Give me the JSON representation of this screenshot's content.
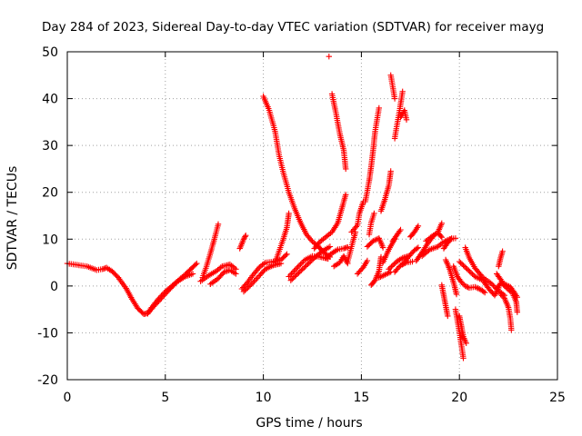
{
  "chart_data": {
    "type": "scatter",
    "title": "Day 284 of 2023, Sidereal Day-to-day VTEC variation (SDTVAR) for receiver mayg",
    "xlabel": "GPS time / hours",
    "ylabel": "SDTVAR / TECUs",
    "xlim": [
      0,
      25
    ],
    "ylim": [
      -20,
      50
    ],
    "xticks": [
      0,
      5,
      10,
      15,
      20,
      25
    ],
    "yticks": [
      -20,
      -10,
      0,
      10,
      20,
      30,
      40,
      50
    ],
    "xtick_labels": [
      "0",
      "5",
      "10",
      "15",
      "20",
      "25"
    ],
    "ytick_labels": [
      "-20",
      "-10",
      "0",
      "10",
      "20",
      "30",
      "40",
      "50"
    ],
    "grid": true,
    "marker": "+",
    "color": "#ff0000",
    "series": [
      {
        "name": "s01",
        "points": [
          [
            0,
            4.8
          ],
          [
            0.5,
            4.5
          ],
          [
            1.0,
            4.2
          ],
          [
            1.5,
            3.4
          ],
          [
            1.8,
            3.6
          ],
          [
            2.0,
            3.9
          ],
          [
            2.3,
            3.1
          ],
          [
            2.6,
            1.8
          ],
          [
            3.0,
            -0.5
          ],
          [
            3.3,
            -2.8
          ],
          [
            3.6,
            -4.8
          ],
          [
            3.9,
            -6.0
          ],
          [
            4.1,
            -5.8
          ],
          [
            4.3,
            -4.6
          ],
          [
            4.6,
            -3.0
          ],
          [
            5.0,
            -1.2
          ],
          [
            5.5,
            0.6
          ],
          [
            6.0,
            2.4
          ],
          [
            6.3,
            3.6
          ],
          [
            6.6,
            4.8
          ]
        ]
      },
      {
        "name": "s02",
        "points": [
          [
            4.1,
            -5.9
          ],
          [
            4.4,
            -4.4
          ],
          [
            4.8,
            -2.6
          ],
          [
            5.2,
            -0.8
          ],
          [
            5.6,
            0.9
          ],
          [
            6.0,
            2.0
          ],
          [
            6.4,
            2.6
          ]
        ]
      },
      {
        "name": "s03",
        "points": [
          [
            6.9,
            1.8
          ],
          [
            7.1,
            4.2
          ],
          [
            7.3,
            7.0
          ],
          [
            7.5,
            10.0
          ],
          [
            7.7,
            13.2
          ]
        ]
      },
      {
        "name": "s04",
        "points": [
          [
            6.8,
            1.0
          ],
          [
            7.2,
            2.2
          ],
          [
            7.6,
            3.2
          ],
          [
            7.9,
            4.2
          ],
          [
            8.3,
            4.6
          ],
          [
            8.6,
            3.6
          ]
        ]
      },
      {
        "name": "s05",
        "points": [
          [
            7.3,
            0.4
          ],
          [
            7.7,
            1.6
          ],
          [
            8.0,
            3.0
          ],
          [
            8.3,
            3.4
          ],
          [
            8.6,
            2.6
          ]
        ]
      },
      {
        "name": "s06",
        "points": [
          [
            8.8,
            8.0
          ],
          [
            8.9,
            9.0
          ],
          [
            9.0,
            10.0
          ],
          [
            9.1,
            10.8
          ]
        ]
      },
      {
        "name": "s07",
        "points": [
          [
            8.9,
            -0.6
          ],
          [
            9.2,
            0.8
          ],
          [
            9.5,
            2.5
          ],
          [
            9.8,
            4.0
          ],
          [
            10.1,
            5.0
          ],
          [
            10.5,
            5.2
          ],
          [
            10.9,
            5.6
          ],
          [
            11.2,
            6.8
          ]
        ]
      },
      {
        "name": "s08",
        "points": [
          [
            9.0,
            -1.2
          ],
          [
            9.4,
            0.4
          ],
          [
            9.8,
            2.2
          ],
          [
            10.1,
            3.6
          ],
          [
            10.5,
            4.4
          ],
          [
            10.9,
            4.8
          ]
        ]
      },
      {
        "name": "s09",
        "points": [
          [
            10.6,
            5.0
          ],
          [
            10.8,
            7.4
          ],
          [
            11.0,
            9.8
          ],
          [
            11.2,
            12.5
          ],
          [
            11.3,
            15.5
          ]
        ]
      },
      {
        "name": "s10",
        "points": [
          [
            10.0,
            40.5
          ],
          [
            10.3,
            37.5
          ],
          [
            10.6,
            33.0
          ],
          [
            10.8,
            28.0
          ],
          [
            11.0,
            24.5
          ],
          [
            11.3,
            20.0
          ],
          [
            11.6,
            16.5
          ],
          [
            11.9,
            13.5
          ],
          [
            12.2,
            11.0
          ],
          [
            12.5,
            9.5
          ],
          [
            12.8,
            8.5
          ],
          [
            13.0,
            7.5
          ],
          [
            13.2,
            6.8
          ],
          [
            13.4,
            6.2
          ]
        ]
      },
      {
        "name": "s11",
        "points": [
          [
            11.3,
            2.0
          ],
          [
            11.7,
            3.8
          ],
          [
            12.1,
            5.5
          ],
          [
            12.5,
            6.4
          ],
          [
            12.9,
            6.2
          ],
          [
            13.3,
            5.8
          ]
        ]
      },
      {
        "name": "s12",
        "points": [
          [
            11.4,
            1.2
          ],
          [
            11.8,
            2.8
          ],
          [
            12.2,
            4.4
          ],
          [
            12.6,
            6.0
          ],
          [
            13.0,
            7.4
          ],
          [
            13.4,
            8.4
          ]
        ]
      },
      {
        "name": "s13",
        "points": [
          [
            12.6,
            8.0
          ],
          [
            12.9,
            9.5
          ],
          [
            13.2,
            10.5
          ],
          [
            13.5,
            11.5
          ],
          [
            13.8,
            13.5
          ],
          [
            14.0,
            16.5
          ],
          [
            14.2,
            19.5
          ]
        ]
      },
      {
        "name": "s14",
        "points": [
          [
            13.35,
            49.0
          ]
        ]
      },
      {
        "name": "s15",
        "points": [
          [
            13.5,
            41.0
          ],
          [
            13.7,
            37.0
          ],
          [
            13.9,
            32.5
          ],
          [
            14.1,
            29.0
          ],
          [
            14.2,
            25.0
          ]
        ]
      },
      {
        "name": "s16",
        "points": [
          [
            13.2,
            6.0
          ],
          [
            13.5,
            7.0
          ],
          [
            13.8,
            7.8
          ],
          [
            14.1,
            8.0
          ],
          [
            14.3,
            8.3
          ]
        ]
      },
      {
        "name": "s17",
        "points": [
          [
            13.6,
            4.2
          ],
          [
            13.9,
            5.0
          ],
          [
            14.1,
            6.4
          ],
          [
            14.3,
            4.8
          ]
        ]
      },
      {
        "name": "s18",
        "points": [
          [
            14.3,
            5.2
          ],
          [
            14.5,
            8.4
          ],
          [
            14.6,
            10.0
          ],
          [
            14.7,
            11.5
          ]
        ]
      },
      {
        "name": "s19",
        "points": [
          [
            14.5,
            11.5
          ],
          [
            14.8,
            13.0
          ],
          [
            14.9,
            15.5
          ],
          [
            15.1,
            18.0
          ]
        ]
      },
      {
        "name": "s20",
        "points": [
          [
            14.8,
            2.6
          ],
          [
            15.1,
            4.0
          ],
          [
            15.3,
            5.4
          ]
        ]
      },
      {
        "name": "s21",
        "points": [
          [
            15.2,
            18.0
          ],
          [
            15.4,
            22.5
          ],
          [
            15.5,
            25.5
          ],
          [
            15.6,
            29.0
          ],
          [
            15.7,
            33.0
          ],
          [
            15.9,
            38.0
          ]
        ]
      },
      {
        "name": "s22",
        "points": [
          [
            15.4,
            11.0
          ],
          [
            15.5,
            13.5
          ],
          [
            15.65,
            15.5
          ]
        ]
      },
      {
        "name": "s23",
        "points": [
          [
            15.3,
            8.4
          ],
          [
            15.6,
            9.6
          ],
          [
            15.9,
            10.2
          ],
          [
            16.1,
            8.2
          ]
        ]
      },
      {
        "name": "s24",
        "points": [
          [
            15.5,
            0.2
          ],
          [
            15.7,
            1.2
          ],
          [
            15.9,
            3.2
          ],
          [
            16.0,
            6.2
          ]
        ]
      },
      {
        "name": "s25",
        "points": [
          [
            15.9,
            1.8
          ],
          [
            16.2,
            2.4
          ],
          [
            16.5,
            3.0
          ]
        ]
      },
      {
        "name": "s26",
        "points": [
          [
            16.0,
            16.0
          ],
          [
            16.2,
            18.5
          ],
          [
            16.4,
            21.5
          ],
          [
            16.5,
            24.5
          ]
        ]
      },
      {
        "name": "s27",
        "points": [
          [
            16.1,
            5.0
          ],
          [
            16.4,
            7.8
          ],
          [
            16.7,
            10.0
          ]
        ]
      },
      {
        "name": "s28",
        "points": [
          [
            16.5,
            45.0
          ],
          [
            16.6,
            42.5
          ],
          [
            16.7,
            40.0
          ]
        ]
      },
      {
        "name": "s29",
        "points": [
          [
            16.7,
            3.0
          ],
          [
            17.0,
            4.4
          ],
          [
            17.3,
            5.0
          ],
          [
            17.6,
            5.2
          ]
        ]
      },
      {
        "name": "s30",
        "points": [
          [
            16.4,
            3.6
          ],
          [
            16.8,
            5.2
          ],
          [
            17.1,
            6.0
          ],
          [
            17.4,
            6.4
          ]
        ]
      },
      {
        "name": "s31",
        "points": [
          [
            16.6,
            9.6
          ],
          [
            16.8,
            10.8
          ],
          [
            17.0,
            12.0
          ]
        ]
      },
      {
        "name": "s32",
        "points": [
          [
            16.7,
            31.5
          ],
          [
            16.8,
            34.0
          ],
          [
            16.95,
            37.5
          ],
          [
            17.1,
            41.5
          ]
        ]
      },
      {
        "name": "s33",
        "points": [
          [
            17.0,
            36.0
          ],
          [
            17.2,
            37.5
          ],
          [
            17.3,
            35.5
          ]
        ]
      },
      {
        "name": "s34",
        "points": [
          [
            17.1,
            4.6
          ],
          [
            17.4,
            6.2
          ],
          [
            17.7,
            7.6
          ],
          [
            17.9,
            8.2
          ]
        ]
      },
      {
        "name": "s35",
        "points": [
          [
            17.5,
            10.5
          ],
          [
            17.7,
            11.5
          ],
          [
            17.9,
            12.8
          ]
        ]
      },
      {
        "name": "s36",
        "points": [
          [
            17.8,
            5.4
          ],
          [
            18.1,
            7.2
          ],
          [
            18.4,
            9.2
          ],
          [
            18.7,
            10.8
          ],
          [
            18.9,
            11.4
          ],
          [
            19.1,
            10.4
          ]
        ]
      },
      {
        "name": "s37",
        "points": [
          [
            18.1,
            6.4
          ],
          [
            18.5,
            7.8
          ],
          [
            18.9,
            8.4
          ],
          [
            19.2,
            9.4
          ],
          [
            19.5,
            10.0
          ],
          [
            19.8,
            10.2
          ]
        ]
      },
      {
        "name": "s38",
        "points": [
          [
            18.3,
            9.6
          ],
          [
            18.6,
            10.6
          ],
          [
            18.9,
            11.4
          ],
          [
            19.1,
            13.4
          ]
        ]
      },
      {
        "name": "s39",
        "points": [
          [
            19.2,
            8.0
          ],
          [
            19.4,
            9.2
          ],
          [
            19.6,
            10.2
          ]
        ]
      },
      {
        "name": "s40",
        "points": [
          [
            19.3,
            5.6
          ],
          [
            19.5,
            3.6
          ],
          [
            19.6,
            2.2
          ],
          [
            19.75,
            0.0
          ],
          [
            19.85,
            -1.8
          ]
        ]
      },
      {
        "name": "s41",
        "points": [
          [
            19.1,
            0.2
          ],
          [
            19.2,
            -2.0
          ],
          [
            19.3,
            -4.2
          ],
          [
            19.4,
            -6.4
          ]
        ]
      },
      {
        "name": "s42",
        "points": [
          [
            19.8,
            -5.0
          ],
          [
            19.9,
            -7.4
          ],
          [
            20.0,
            -9.8
          ],
          [
            20.1,
            -12.6
          ],
          [
            20.2,
            -15.4
          ]
        ]
      },
      {
        "name": "s43",
        "points": [
          [
            20.0,
            -6.4
          ],
          [
            20.1,
            -8.6
          ],
          [
            20.2,
            -10.8
          ],
          [
            20.35,
            -12.2
          ]
        ]
      },
      {
        "name": "s44",
        "points": [
          [
            19.7,
            4.2
          ],
          [
            19.9,
            2.0
          ],
          [
            20.1,
            0.8
          ],
          [
            20.3,
            0.0
          ],
          [
            20.5,
            -0.4
          ],
          [
            20.8,
            -0.2
          ],
          [
            21.1,
            -0.8
          ],
          [
            21.3,
            -1.4
          ]
        ]
      },
      {
        "name": "s45",
        "points": [
          [
            20.3,
            8.2
          ],
          [
            20.5,
            6.0
          ],
          [
            20.8,
            3.8
          ],
          [
            21.2,
            1.8
          ],
          [
            21.6,
            0.6
          ],
          [
            22.0,
            -1.0
          ],
          [
            22.3,
            -2.0
          ]
        ]
      },
      {
        "name": "s46",
        "points": [
          [
            20.0,
            5.2
          ],
          [
            20.4,
            3.6
          ],
          [
            20.8,
            2.0
          ],
          [
            21.2,
            1.2
          ],
          [
            21.5,
            -0.6
          ],
          [
            21.8,
            -2.0
          ],
          [
            22.0,
            -0.4
          ]
        ]
      },
      {
        "name": "s47",
        "points": [
          [
            22.0,
            4.2
          ],
          [
            22.1,
            6.0
          ],
          [
            22.2,
            7.4
          ]
        ]
      },
      {
        "name": "s48",
        "points": [
          [
            21.9,
            2.6
          ],
          [
            22.1,
            1.4
          ],
          [
            22.3,
            0.0
          ],
          [
            22.5,
            -0.8
          ],
          [
            22.7,
            -1.4
          ],
          [
            22.9,
            -3.4
          ],
          [
            22.95,
            -5.6
          ]
        ]
      },
      {
        "name": "s49",
        "points": [
          [
            22.1,
            -1.8
          ],
          [
            22.3,
            -2.6
          ],
          [
            22.5,
            -4.6
          ],
          [
            22.6,
            -7.0
          ],
          [
            22.65,
            -9.4
          ]
        ]
      },
      {
        "name": "s50",
        "points": [
          [
            21.9,
            -0.6
          ],
          [
            22.1,
            0.6
          ],
          [
            22.3,
            0.4
          ],
          [
            22.6,
            -0.2
          ],
          [
            22.8,
            -1.4
          ],
          [
            22.95,
            -2.4
          ]
        ]
      }
    ]
  }
}
